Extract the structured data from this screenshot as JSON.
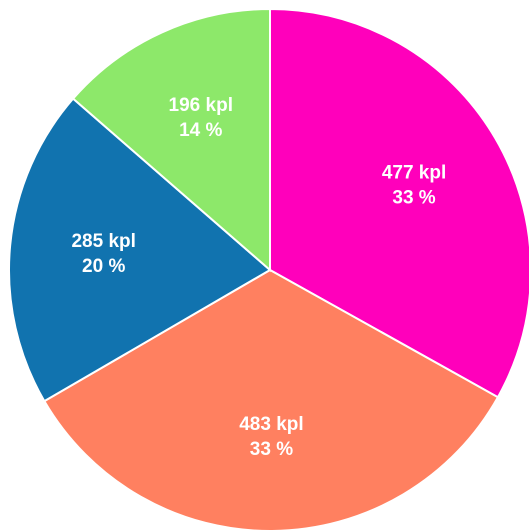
{
  "chart_data": {
    "type": "pie",
    "categories": [
      null,
      null,
      null,
      null
    ],
    "values": [
      477,
      483,
      285,
      196
    ],
    "value_labels": [
      "477 kpl",
      "483 kpl",
      "285 kpl",
      "196 kpl"
    ],
    "percent_labels": [
      "33 %",
      "33 %",
      "20 %",
      "14 %"
    ],
    "colors": [
      "#ff00bb",
      "#ff8060",
      "#1173af",
      "#8de86a"
    ]
  }
}
